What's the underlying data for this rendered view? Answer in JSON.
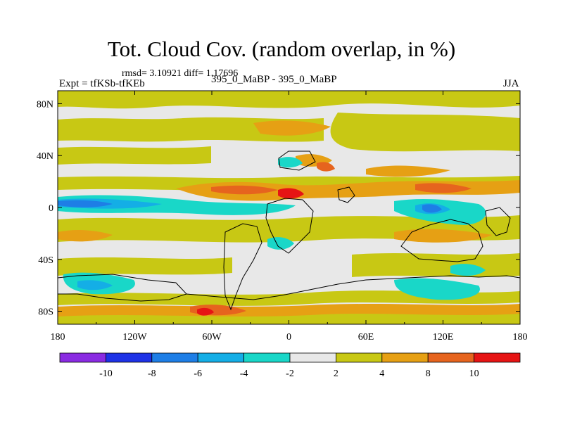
{
  "map": {
    "title": "Tot. Cloud Cov. (random overlap, in %)",
    "stats_line": "rmsd= 3.10921 diff= 1.17696",
    "experiment_label": "Expt = tfKSb-tfKEb",
    "cases_label": "395_0_MaBP - 395_0_MaBP",
    "season_label": "JJA",
    "projection": "cylindrical-equidistant",
    "lon_range": [
      -180,
      180
    ],
    "lat_range": [
      -90,
      90
    ],
    "x_ticks": [
      {
        "value": -180,
        "label": "180"
      },
      {
        "value": -120,
        "label": "120W"
      },
      {
        "value": -60,
        "label": "60W"
      },
      {
        "value": 0,
        "label": "0"
      },
      {
        "value": 60,
        "label": "60E"
      },
      {
        "value": 120,
        "label": "120E"
      },
      {
        "value": 180,
        "label": "180"
      }
    ],
    "y_ticks": [
      {
        "value": 80,
        "label": "80N"
      },
      {
        "value": 40,
        "label": "40N"
      },
      {
        "value": 0,
        "label": "0"
      },
      {
        "value": -40,
        "label": "40S"
      },
      {
        "value": -80,
        "label": "80S"
      }
    ]
  },
  "legend": {
    "levels": [
      -10,
      -8,
      -6,
      -4,
      -2,
      2,
      4,
      8,
      10
    ],
    "labels": [
      "-10",
      "-8",
      "-6",
      "-4",
      "-2",
      "2",
      "4",
      "8",
      "10"
    ],
    "colors": [
      "#8a2be2",
      "#1e32e6",
      "#1e7ee6",
      "#14aee6",
      "#19d7c8",
      "#e8e8e8",
      "#c8c814",
      "#e6a014",
      "#e6641e",
      "#e61414"
    ]
  },
  "colors": {
    "neutral": "#e8e8e8",
    "land_outline": "#000000"
  }
}
